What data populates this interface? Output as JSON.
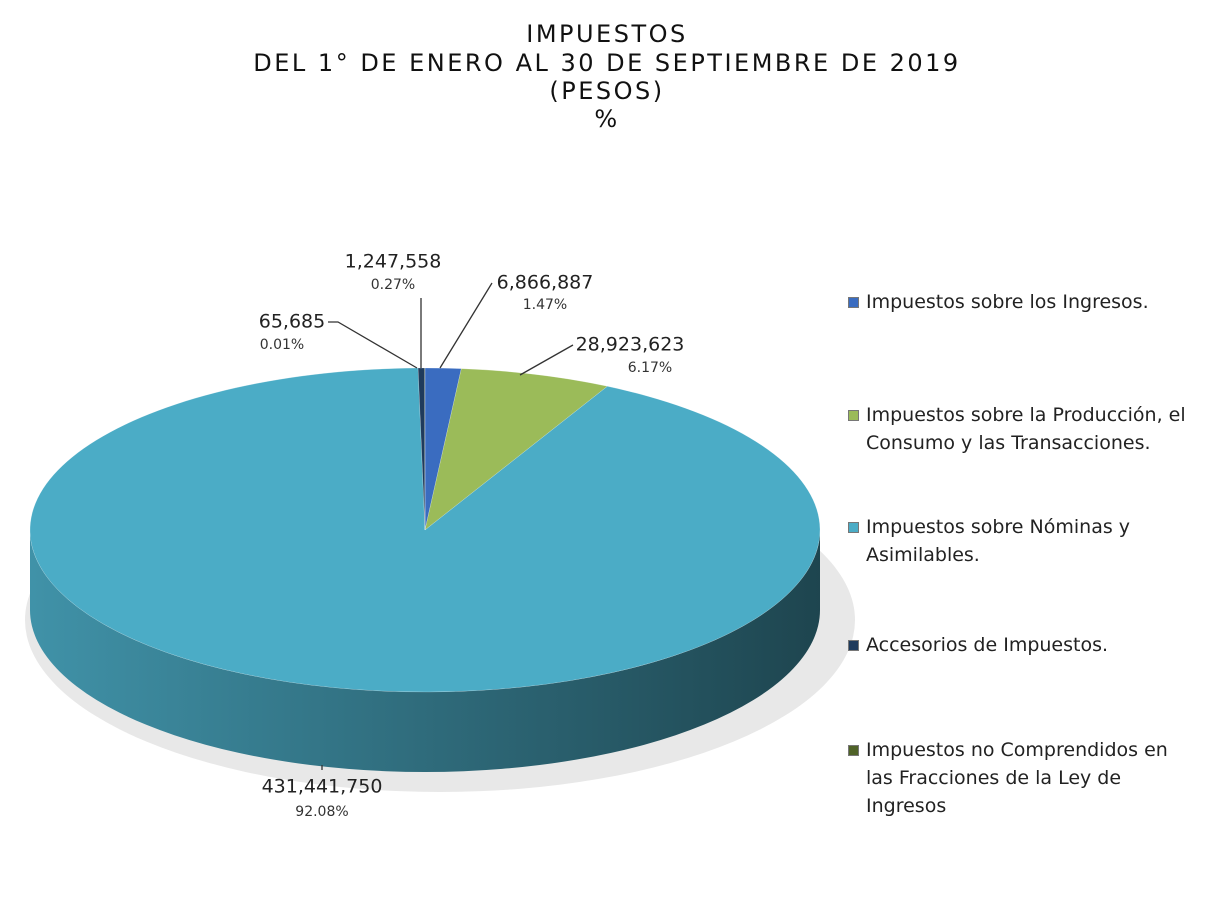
{
  "chart_data": {
    "type": "pie",
    "title_lines": [
      "IMPUESTOS",
      "DEL 1° DE ENERO AL 30 DE SEPTIEMBRE DE 2019",
      "(PESOS)",
      "%"
    ],
    "categories": [
      "Impuestos sobre los Ingresos.",
      "Impuestos sobre la Producción, el Consumo y las Transacciones.",
      "Impuestos sobre Nóminas y Asimilables.",
      "Accesorios de Impuestos.",
      "Impuestos no Comprendidos en las Fracciones de la Ley de Ingresos"
    ],
    "values": [
      6866887,
      28923623,
      431441750,
      1247558,
      65685
    ],
    "value_labels": [
      "6,866,887",
      "28,923,623",
      "431,441,750",
      "1,247,558",
      "65,685"
    ],
    "percentages": [
      1.47,
      6.17,
      92.08,
      0.27,
      0.01
    ],
    "percentage_labels": [
      "1.47%",
      "6.17%",
      "92.08%",
      "0.27%",
      "0.01%"
    ],
    "colors": [
      "#3a6cc0",
      "#9bbb59",
      "#4bacc6",
      "#1f3b5c",
      "#4f6228"
    ],
    "legend": "right"
  }
}
